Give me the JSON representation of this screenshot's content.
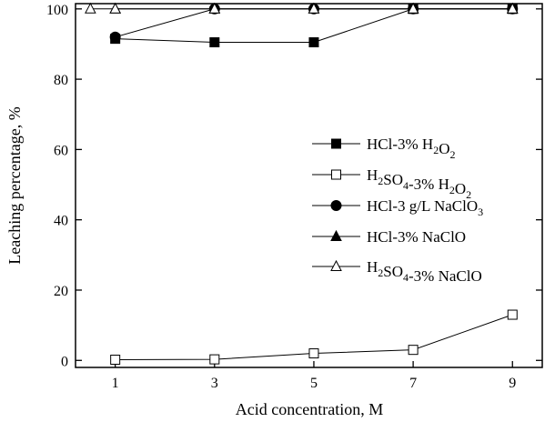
{
  "chart_data": {
    "type": "line",
    "xlabel": "Acid concentration, M",
    "ylabel": "Leaching percentage, %",
    "xlim": [
      0.2,
      9.6
    ],
    "ylim": [
      -2,
      101.5
    ],
    "x_ticks": [
      1,
      3,
      5,
      7,
      9
    ],
    "y_ticks": [
      0,
      20,
      40,
      60,
      80,
      100
    ],
    "grid": false,
    "legend_position": "center-right",
    "series": [
      {
        "name_parts": [
          [
            "HCl-3% H",
            ""
          ],
          [
            "2",
            "sub"
          ],
          [
            "O",
            ""
          ],
          [
            "2",
            "sub"
          ]
        ],
        "marker": "square-filled",
        "x": [
          1,
          3,
          5,
          7,
          9
        ],
        "y": [
          91.5,
          90.5,
          90.5,
          100,
          100
        ]
      },
      {
        "name_parts": [
          [
            "H",
            ""
          ],
          [
            "2",
            "sub"
          ],
          [
            "SO",
            ""
          ],
          [
            "4",
            "sub"
          ],
          [
            "-3% H",
            ""
          ],
          [
            "2",
            "sub"
          ],
          [
            "O",
            ""
          ],
          [
            "2",
            "sub"
          ]
        ],
        "marker": "square-open",
        "x": [
          1,
          3,
          5,
          7,
          9
        ],
        "y": [
          0.2,
          0.3,
          2,
          3,
          13
        ]
      },
      {
        "name_parts": [
          [
            "HCl-3 g/L NaClO",
            ""
          ],
          [
            "3",
            "sub"
          ]
        ],
        "marker": "circle-filled",
        "x": [
          1,
          3,
          5,
          7,
          9
        ],
        "y": [
          92,
          100,
          100,
          100,
          100
        ]
      },
      {
        "name_parts": [
          [
            "HCl-3% NaClO",
            ""
          ]
        ],
        "marker": "triangle-filled",
        "x": [
          1,
          3,
          5,
          7,
          9
        ],
        "y": [
          100,
          100,
          100,
          100,
          100
        ]
      },
      {
        "name_parts": [
          [
            "H",
            ""
          ],
          [
            "2",
            "sub"
          ],
          [
            "SO",
            ""
          ],
          [
            "4",
            "sub"
          ],
          [
            "-3% NaClO",
            ""
          ]
        ],
        "marker": "triangle-open",
        "x": [
          0.5,
          1,
          3,
          5,
          7,
          9
        ],
        "y": [
          100,
          100,
          100,
          100,
          100,
          100
        ]
      }
    ]
  }
}
